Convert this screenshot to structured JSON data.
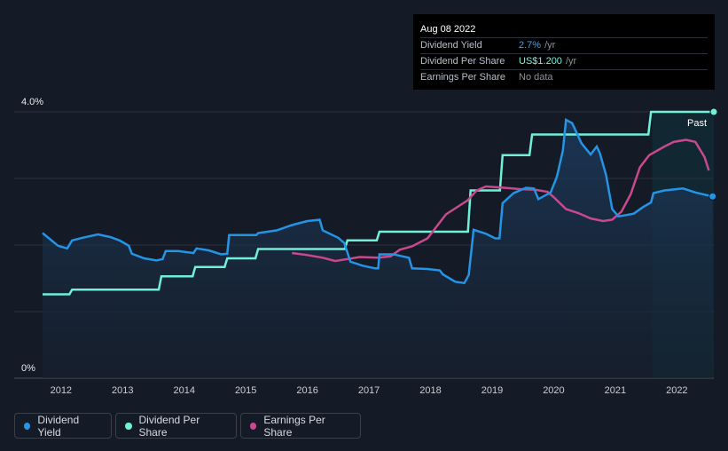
{
  "tooltip": {
    "date": "Aug 08 2022",
    "rows": [
      {
        "label": "Dividend Yield",
        "value": "2.7%",
        "unit": "/yr"
      },
      {
        "label": "Dividend Per Share",
        "value": "US$1.200",
        "unit": "/yr"
      },
      {
        "label": "Earnings Per Share",
        "value": "No data",
        "unit": ""
      }
    ]
  },
  "legend": [
    {
      "label": "Dividend Yield",
      "color": "#2394e6"
    },
    {
      "label": "Dividend Per Share",
      "color": "#6ff0d8"
    },
    {
      "label": "Earnings Per Share",
      "color": "#c8498e"
    }
  ],
  "chart_data": {
    "type": "line",
    "y_top_label": "4.0%",
    "y_bottom_label": "0%",
    "ylim": [
      0,
      4.0
    ],
    "xlim": [
      2011.7,
      2022.6
    ],
    "x_ticks": [
      "2012",
      "2013",
      "2014",
      "2015",
      "2016",
      "2017",
      "2018",
      "2019",
      "2020",
      "2021",
      "2022"
    ],
    "past_label": "Past",
    "past_region_start": 2021.6,
    "grid": true,
    "colors": {
      "yield": "#2394e6",
      "dps": "#6ff0d8",
      "eps": "#c8498e"
    },
    "series": [
      {
        "name": "Dividend Yield",
        "unit": "%",
        "points": [
          [
            2011.7,
            2.18
          ],
          [
            2011.95,
            1.99
          ],
          [
            2012.1,
            1.95
          ],
          [
            2012.18,
            2.07
          ],
          [
            2012.35,
            2.11
          ],
          [
            2012.6,
            2.16
          ],
          [
            2012.8,
            2.12
          ],
          [
            2012.95,
            2.07
          ],
          [
            2013.1,
            1.99
          ],
          [
            2013.15,
            1.87
          ],
          [
            2013.35,
            1.8
          ],
          [
            2013.55,
            1.77
          ],
          [
            2013.65,
            1.79
          ],
          [
            2013.7,
            1.91
          ],
          [
            2013.9,
            1.91
          ],
          [
            2014.15,
            1.88
          ],
          [
            2014.2,
            1.95
          ],
          [
            2014.4,
            1.92
          ],
          [
            2014.6,
            1.86
          ],
          [
            2014.7,
            1.87
          ],
          [
            2014.73,
            2.15
          ],
          [
            2014.9,
            2.15
          ],
          [
            2015.17,
            2.15
          ],
          [
            2015.2,
            2.18
          ],
          [
            2015.5,
            2.22
          ],
          [
            2015.75,
            2.3
          ],
          [
            2016.0,
            2.36
          ],
          [
            2016.2,
            2.38
          ],
          [
            2016.25,
            2.22
          ],
          [
            2016.5,
            2.11
          ],
          [
            2016.6,
            2.03
          ],
          [
            2016.7,
            1.75
          ],
          [
            2016.9,
            1.69
          ],
          [
            2017.1,
            1.65
          ],
          [
            2017.15,
            1.65
          ],
          [
            2017.17,
            1.86
          ],
          [
            2017.4,
            1.86
          ],
          [
            2017.55,
            1.83
          ],
          [
            2017.65,
            1.81
          ],
          [
            2017.7,
            1.65
          ],
          [
            2017.95,
            1.64
          ],
          [
            2018.15,
            1.62
          ],
          [
            2018.2,
            1.56
          ],
          [
            2018.4,
            1.45
          ],
          [
            2018.55,
            1.43
          ],
          [
            2018.62,
            1.55
          ],
          [
            2018.7,
            2.23
          ],
          [
            2018.9,
            2.17
          ],
          [
            2019.05,
            2.1
          ],
          [
            2019.12,
            2.1
          ],
          [
            2019.17,
            2.63
          ],
          [
            2019.35,
            2.78
          ],
          [
            2019.55,
            2.86
          ],
          [
            2019.68,
            2.85
          ],
          [
            2019.75,
            2.69
          ],
          [
            2019.95,
            2.79
          ],
          [
            2020.05,
            3.02
          ],
          [
            2020.15,
            3.42
          ],
          [
            2020.2,
            3.88
          ],
          [
            2020.3,
            3.83
          ],
          [
            2020.45,
            3.53
          ],
          [
            2020.6,
            3.36
          ],
          [
            2020.7,
            3.48
          ],
          [
            2020.75,
            3.38
          ],
          [
            2020.85,
            3.05
          ],
          [
            2020.95,
            2.54
          ],
          [
            2021.05,
            2.43
          ],
          [
            2021.3,
            2.47
          ],
          [
            2021.45,
            2.57
          ],
          [
            2021.58,
            2.64
          ],
          [
            2021.62,
            2.78
          ],
          [
            2021.8,
            2.82
          ],
          [
            2022.1,
            2.85
          ],
          [
            2022.3,
            2.79
          ],
          [
            2022.58,
            2.73
          ]
        ]
      },
      {
        "name": "Dividend Per Share",
        "steps": [
          [
            2011.7,
            1.26
          ],
          [
            2012.18,
            1.33
          ],
          [
            2013.63,
            1.53
          ],
          [
            2014.18,
            1.67
          ],
          [
            2014.7,
            1.8
          ],
          [
            2015.2,
            1.94
          ],
          [
            2016.65,
            2.07
          ],
          [
            2017.17,
            2.2
          ],
          [
            2018.65,
            2.82
          ],
          [
            2019.17,
            3.35
          ],
          [
            2019.65,
            3.66
          ],
          [
            2021.58,
            4.0
          ],
          [
            2022.6,
            4.0
          ]
        ]
      },
      {
        "name": "Earnings Per Share",
        "points": [
          [
            2015.75,
            1.88
          ],
          [
            2016.0,
            1.85
          ],
          [
            2016.25,
            1.81
          ],
          [
            2016.45,
            1.76
          ],
          [
            2016.65,
            1.79
          ],
          [
            2016.85,
            1.82
          ],
          [
            2017.15,
            1.81
          ],
          [
            2017.35,
            1.83
          ],
          [
            2017.5,
            1.93
          ],
          [
            2017.7,
            1.98
          ],
          [
            2017.95,
            2.1
          ],
          [
            2018.1,
            2.28
          ],
          [
            2018.25,
            2.46
          ],
          [
            2018.45,
            2.58
          ],
          [
            2018.6,
            2.67
          ],
          [
            2018.75,
            2.82
          ],
          [
            2018.9,
            2.88
          ],
          [
            2019.2,
            2.86
          ],
          [
            2019.45,
            2.84
          ],
          [
            2019.7,
            2.83
          ],
          [
            2019.9,
            2.8
          ],
          [
            2020.0,
            2.72
          ],
          [
            2020.2,
            2.54
          ],
          [
            2020.4,
            2.48
          ],
          [
            2020.6,
            2.4
          ],
          [
            2020.8,
            2.36
          ],
          [
            2020.95,
            2.38
          ],
          [
            2021.1,
            2.5
          ],
          [
            2021.25,
            2.76
          ],
          [
            2021.4,
            3.17
          ],
          [
            2021.55,
            3.35
          ],
          [
            2021.8,
            3.48
          ],
          [
            2021.95,
            3.55
          ],
          [
            2022.15,
            3.58
          ],
          [
            2022.3,
            3.55
          ],
          [
            2022.45,
            3.32
          ],
          [
            2022.52,
            3.12
          ]
        ]
      }
    ]
  }
}
